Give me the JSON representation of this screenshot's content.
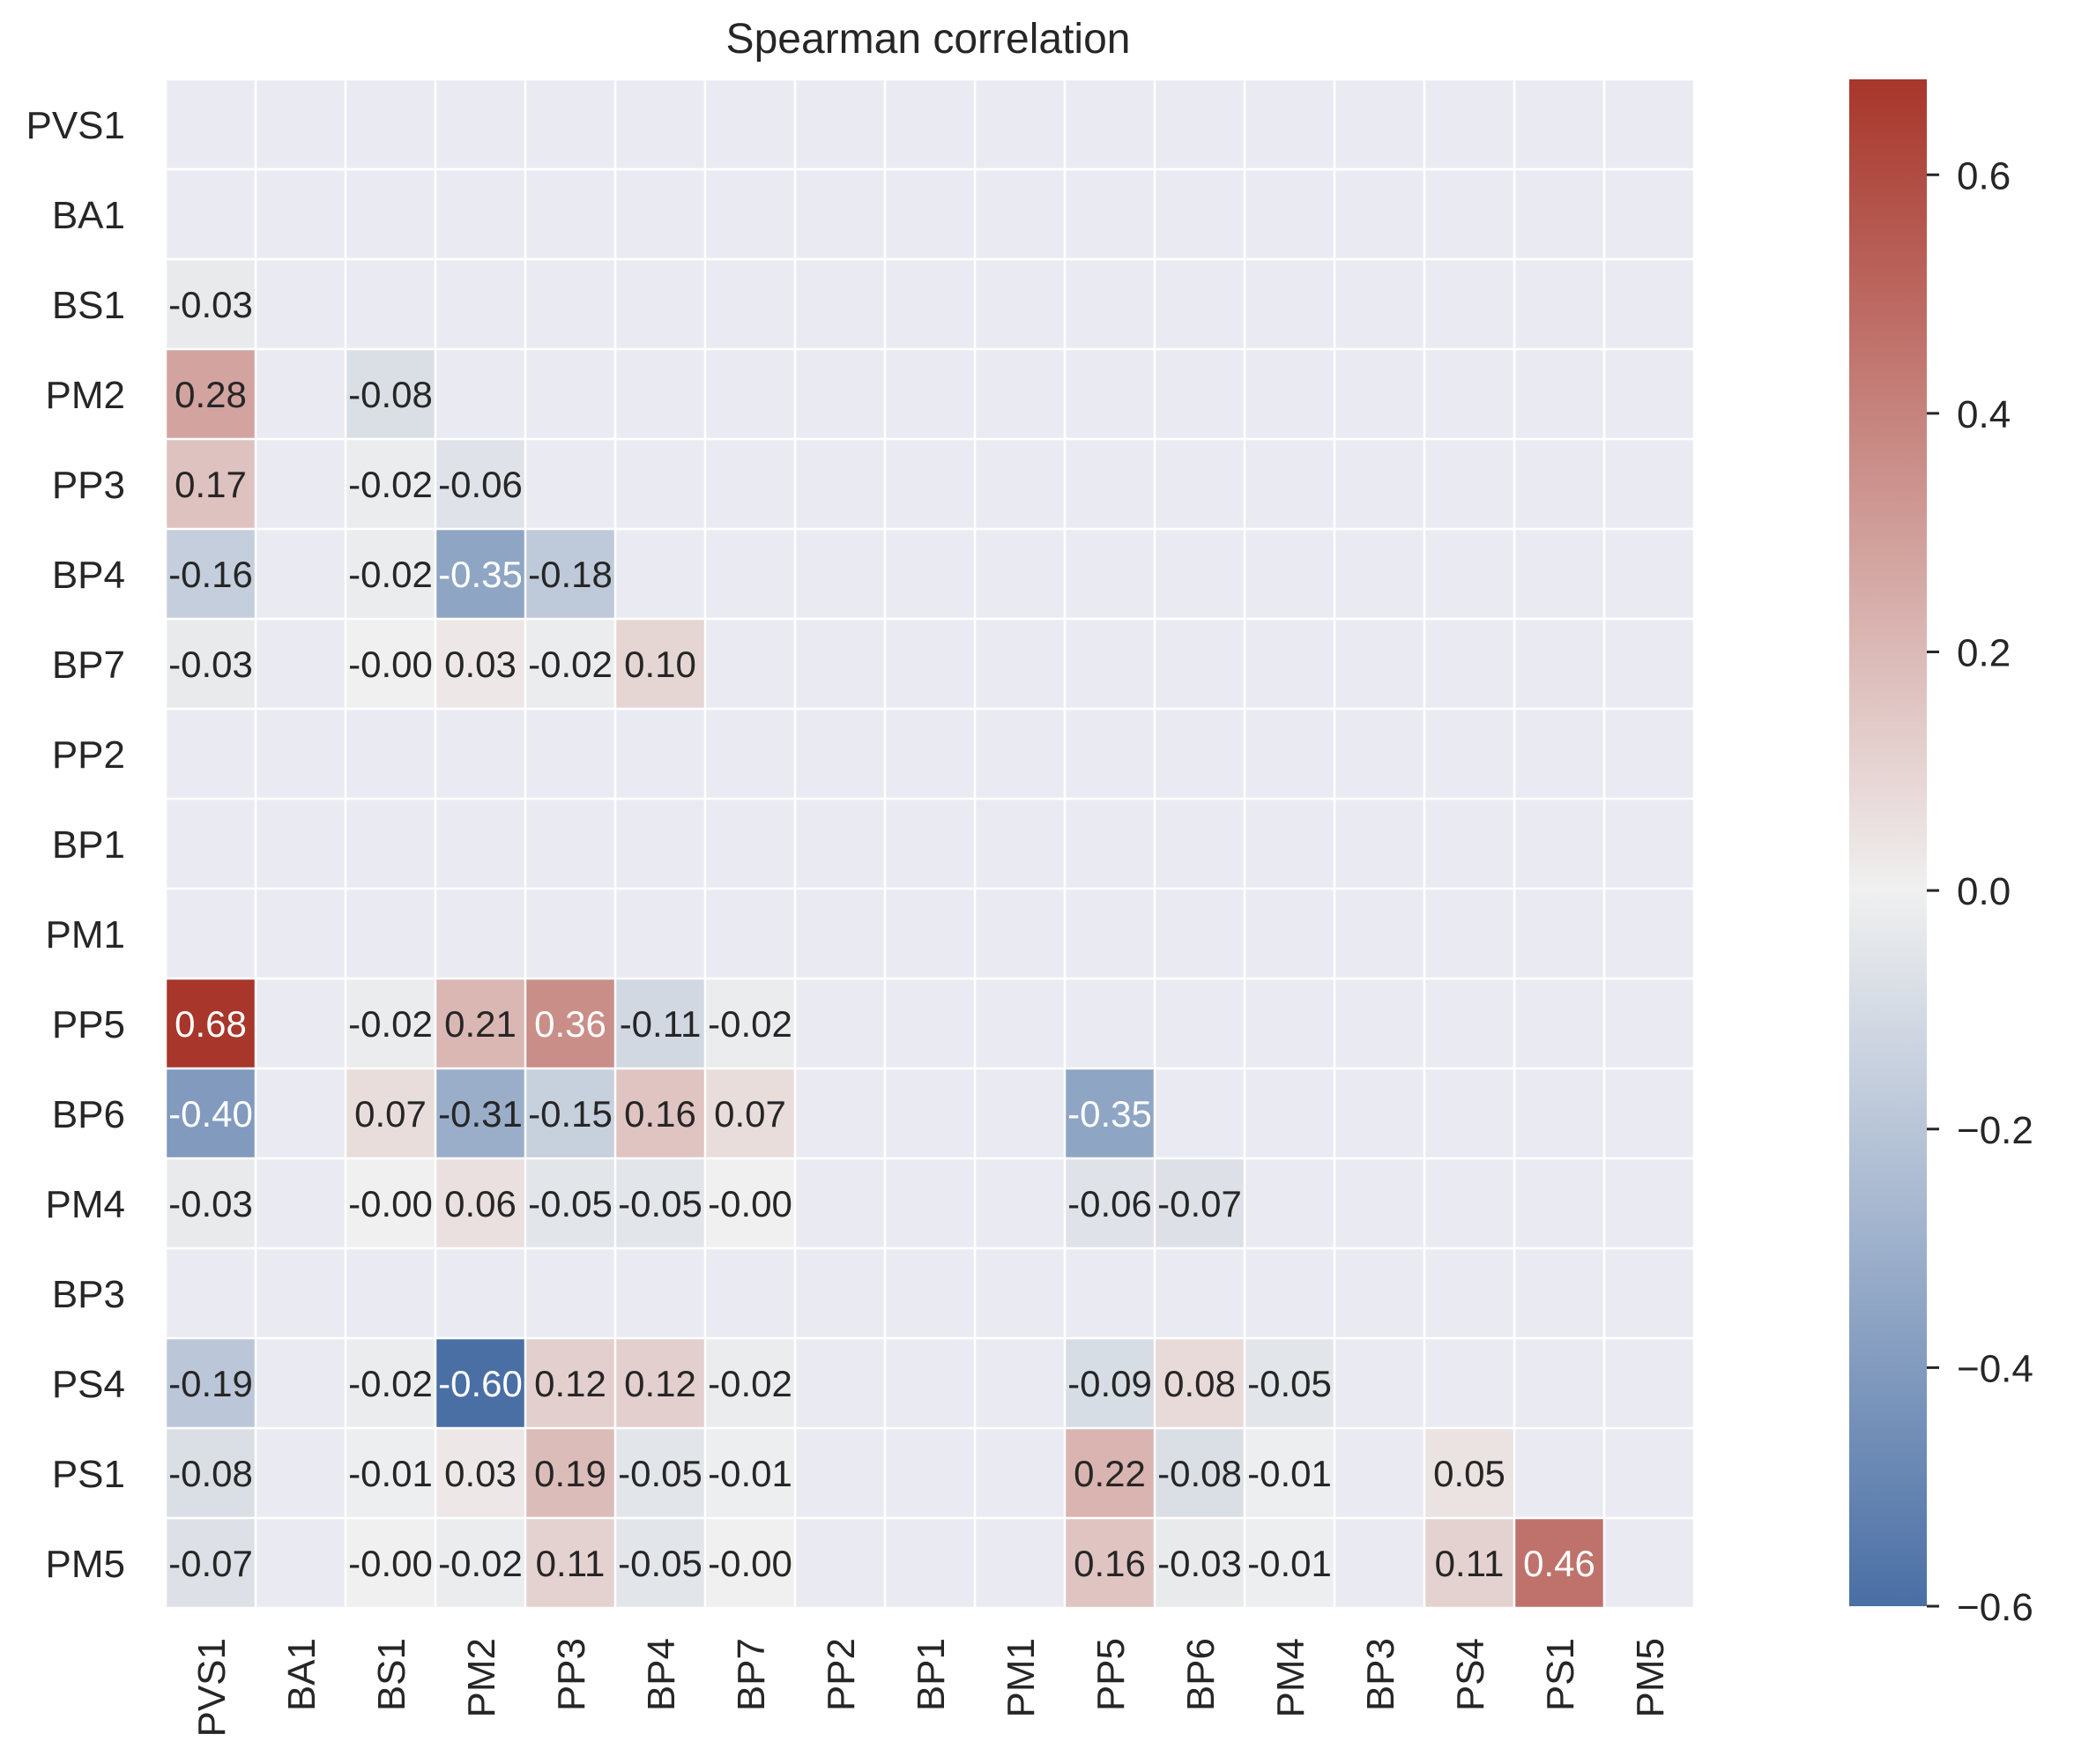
{
  "chart_data": {
    "type": "heatmap",
    "title": "Spearman correlation",
    "labels": [
      "PVS1",
      "BA1",
      "BS1",
      "PM2",
      "PP3",
      "BP4",
      "BP7",
      "PP2",
      "BP1",
      "PM1",
      "PP5",
      "BP6",
      "PM4",
      "BP3",
      "PS4",
      "PS1",
      "PM5"
    ],
    "mask": "upper-triangle-including-diagonal",
    "cells": [
      {
        "row": "BS1",
        "col": "PVS1",
        "value": -0.03,
        "text": "-0.03"
      },
      {
        "row": "PM2",
        "col": "PVS1",
        "value": 0.28,
        "text": "0.28"
      },
      {
        "row": "PM2",
        "col": "BS1",
        "value": -0.08,
        "text": "-0.08"
      },
      {
        "row": "PP3",
        "col": "PVS1",
        "value": 0.17,
        "text": "0.17"
      },
      {
        "row": "PP3",
        "col": "BS1",
        "value": -0.02,
        "text": "-0.02"
      },
      {
        "row": "PP3",
        "col": "PM2",
        "value": -0.06,
        "text": "-0.06"
      },
      {
        "row": "BP4",
        "col": "PVS1",
        "value": -0.16,
        "text": "-0.16"
      },
      {
        "row": "BP4",
        "col": "BS1",
        "value": -0.02,
        "text": "-0.02"
      },
      {
        "row": "BP4",
        "col": "PM2",
        "value": -0.35,
        "text": "-0.35"
      },
      {
        "row": "BP4",
        "col": "PP3",
        "value": -0.18,
        "text": "-0.18"
      },
      {
        "row": "BP7",
        "col": "PVS1",
        "value": -0.03,
        "text": "-0.03"
      },
      {
        "row": "BP7",
        "col": "BS1",
        "value": -0.0,
        "text": "-0.00"
      },
      {
        "row": "BP7",
        "col": "PM2",
        "value": 0.03,
        "text": "0.03"
      },
      {
        "row": "BP7",
        "col": "PP3",
        "value": -0.02,
        "text": "-0.02"
      },
      {
        "row": "BP7",
        "col": "BP4",
        "value": 0.1,
        "text": "0.10"
      },
      {
        "row": "PP5",
        "col": "PVS1",
        "value": 0.68,
        "text": "0.68"
      },
      {
        "row": "PP5",
        "col": "BS1",
        "value": -0.02,
        "text": "-0.02"
      },
      {
        "row": "PP5",
        "col": "PM2",
        "value": 0.21,
        "text": "0.21"
      },
      {
        "row": "PP5",
        "col": "PP3",
        "value": 0.36,
        "text": "0.36"
      },
      {
        "row": "PP5",
        "col": "BP4",
        "value": -0.11,
        "text": "-0.11"
      },
      {
        "row": "PP5",
        "col": "BP7",
        "value": -0.02,
        "text": "-0.02"
      },
      {
        "row": "BP6",
        "col": "PVS1",
        "value": -0.4,
        "text": "-0.40"
      },
      {
        "row": "BP6",
        "col": "BS1",
        "value": 0.07,
        "text": "0.07"
      },
      {
        "row": "BP6",
        "col": "PM2",
        "value": -0.31,
        "text": "-0.31"
      },
      {
        "row": "BP6",
        "col": "PP3",
        "value": -0.15,
        "text": "-0.15"
      },
      {
        "row": "BP6",
        "col": "BP4",
        "value": 0.16,
        "text": "0.16"
      },
      {
        "row": "BP6",
        "col": "BP7",
        "value": 0.07,
        "text": "0.07"
      },
      {
        "row": "BP6",
        "col": "PP5",
        "value": -0.35,
        "text": "-0.35"
      },
      {
        "row": "PM4",
        "col": "PVS1",
        "value": -0.03,
        "text": "-0.03"
      },
      {
        "row": "PM4",
        "col": "BS1",
        "value": -0.0,
        "text": "-0.00"
      },
      {
        "row": "PM4",
        "col": "PM2",
        "value": 0.06,
        "text": "0.06"
      },
      {
        "row": "PM4",
        "col": "PP3",
        "value": -0.05,
        "text": "-0.05"
      },
      {
        "row": "PM4",
        "col": "BP4",
        "value": -0.05,
        "text": "-0.05"
      },
      {
        "row": "PM4",
        "col": "BP7",
        "value": -0.0,
        "text": "-0.00"
      },
      {
        "row": "PM4",
        "col": "PP5",
        "value": -0.06,
        "text": "-0.06"
      },
      {
        "row": "PM4",
        "col": "BP6",
        "value": -0.07,
        "text": "-0.07"
      },
      {
        "row": "PS4",
        "col": "PVS1",
        "value": -0.19,
        "text": "-0.19"
      },
      {
        "row": "PS4",
        "col": "BS1",
        "value": -0.02,
        "text": "-0.02"
      },
      {
        "row": "PS4",
        "col": "PM2",
        "value": -0.6,
        "text": "-0.60"
      },
      {
        "row": "PS4",
        "col": "PP3",
        "value": 0.12,
        "text": "0.12"
      },
      {
        "row": "PS4",
        "col": "BP4",
        "value": 0.12,
        "text": "0.12"
      },
      {
        "row": "PS4",
        "col": "BP7",
        "value": -0.02,
        "text": "-0.02"
      },
      {
        "row": "PS4",
        "col": "PP5",
        "value": -0.09,
        "text": "-0.09"
      },
      {
        "row": "PS4",
        "col": "BP6",
        "value": 0.08,
        "text": "0.08"
      },
      {
        "row": "PS4",
        "col": "PM4",
        "value": -0.05,
        "text": "-0.05"
      },
      {
        "row": "PS1",
        "col": "PVS1",
        "value": -0.08,
        "text": "-0.08"
      },
      {
        "row": "PS1",
        "col": "BS1",
        "value": -0.01,
        "text": "-0.01"
      },
      {
        "row": "PS1",
        "col": "PM2",
        "value": 0.03,
        "text": "0.03"
      },
      {
        "row": "PS1",
        "col": "PP3",
        "value": 0.19,
        "text": "0.19"
      },
      {
        "row": "PS1",
        "col": "BP4",
        "value": -0.05,
        "text": "-0.05"
      },
      {
        "row": "PS1",
        "col": "BP7",
        "value": -0.01,
        "text": "-0.01"
      },
      {
        "row": "PS1",
        "col": "PP5",
        "value": 0.22,
        "text": "0.22"
      },
      {
        "row": "PS1",
        "col": "BP6",
        "value": -0.08,
        "text": "-0.08"
      },
      {
        "row": "PS1",
        "col": "PM4",
        "value": -0.01,
        "text": "-0.01"
      },
      {
        "row": "PS1",
        "col": "PS4",
        "value": 0.05,
        "text": "0.05"
      },
      {
        "row": "PM5",
        "col": "PVS1",
        "value": -0.07,
        "text": "-0.07"
      },
      {
        "row": "PM5",
        "col": "BS1",
        "value": -0.0,
        "text": "-0.00"
      },
      {
        "row": "PM5",
        "col": "PM2",
        "value": -0.02,
        "text": "-0.02"
      },
      {
        "row": "PM5",
        "col": "PP3",
        "value": 0.11,
        "text": "0.11"
      },
      {
        "row": "PM5",
        "col": "BP4",
        "value": -0.05,
        "text": "-0.05"
      },
      {
        "row": "PM5",
        "col": "BP7",
        "value": -0.0,
        "text": "-0.00"
      },
      {
        "row": "PM5",
        "col": "PP5",
        "value": 0.16,
        "text": "0.16"
      },
      {
        "row": "PM5",
        "col": "BP6",
        "value": -0.03,
        "text": "-0.03"
      },
      {
        "row": "PM5",
        "col": "PM4",
        "value": -0.01,
        "text": "-0.01"
      },
      {
        "row": "PM5",
        "col": "PS4",
        "value": 0.11,
        "text": "0.11"
      },
      {
        "row": "PM5",
        "col": "PS1",
        "value": 0.46,
        "text": "0.46"
      }
    ],
    "colorbar": {
      "vmin": -0.6,
      "vmax": 0.68,
      "center": 0.0,
      "ticks": [
        0.6,
        0.4,
        0.2,
        0.0,
        -0.2,
        -0.4,
        -0.6
      ],
      "tick_labels": [
        "0.6",
        "0.4",
        "0.2",
        "0.0",
        "−0.2",
        "−0.4",
        "−0.6"
      ]
    },
    "colors": {
      "negative": "#4a6fa5",
      "center": "#f0f0f0",
      "positive": "#a8362b",
      "masked_background": "#eaeaf2",
      "grid": "#ffffff",
      "text_dark": "#262626",
      "text_light": "#ffffff"
    }
  }
}
